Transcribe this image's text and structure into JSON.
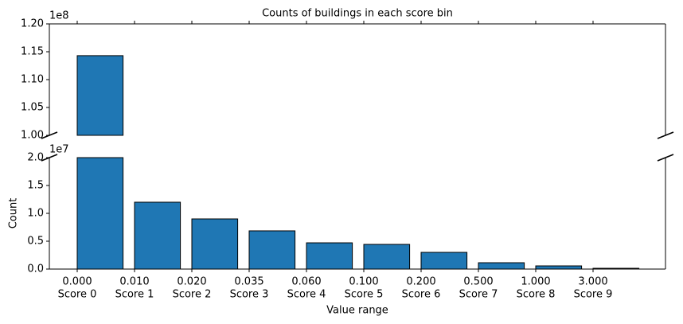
{
  "chart_data": {
    "type": "bar",
    "title": "Counts of buildings in each score bin",
    "xlabel": "Value range",
    "ylabel": "Count",
    "categories": [
      "Score 0",
      "Score 1",
      "Score 2",
      "Score 3",
      "Score 4",
      "Score 5",
      "Score 6",
      "Score 7",
      "Score 8",
      "Score 9"
    ],
    "bin_edges": [
      "0.000",
      "0.010",
      "0.020",
      "0.035",
      "0.060",
      "0.100",
      "0.200",
      "0.500",
      "1.000",
      "3.000"
    ],
    "values": [
      114300000,
      12000000,
      9000000,
      6860000,
      4710000,
      4430000,
      3000000,
      1140000,
      570000,
      140000
    ],
    "color": "#1f77b4",
    "panels": [
      {
        "ylim": [
          100000000,
          120000000
        ],
        "offset_label": "1e8",
        "yticks": [
          {
            "value": 100000000,
            "label": "1.00"
          },
          {
            "value": 105000000,
            "label": "1.05"
          },
          {
            "value": 110000000,
            "label": "1.10"
          },
          {
            "value": 115000000,
            "label": "1.15"
          },
          {
            "value": 120000000,
            "label": "1.20"
          }
        ]
      },
      {
        "ylim": [
          0,
          20000000
        ],
        "offset_label": "1e7",
        "yticks": [
          {
            "value": 0,
            "label": "0.0"
          },
          {
            "value": 5000000,
            "label": "0.5"
          },
          {
            "value": 10000000,
            "label": "1.0"
          },
          {
            "value": 15000000,
            "label": "1.5"
          },
          {
            "value": 20000000,
            "label": "2.0"
          }
        ]
      }
    ]
  }
}
